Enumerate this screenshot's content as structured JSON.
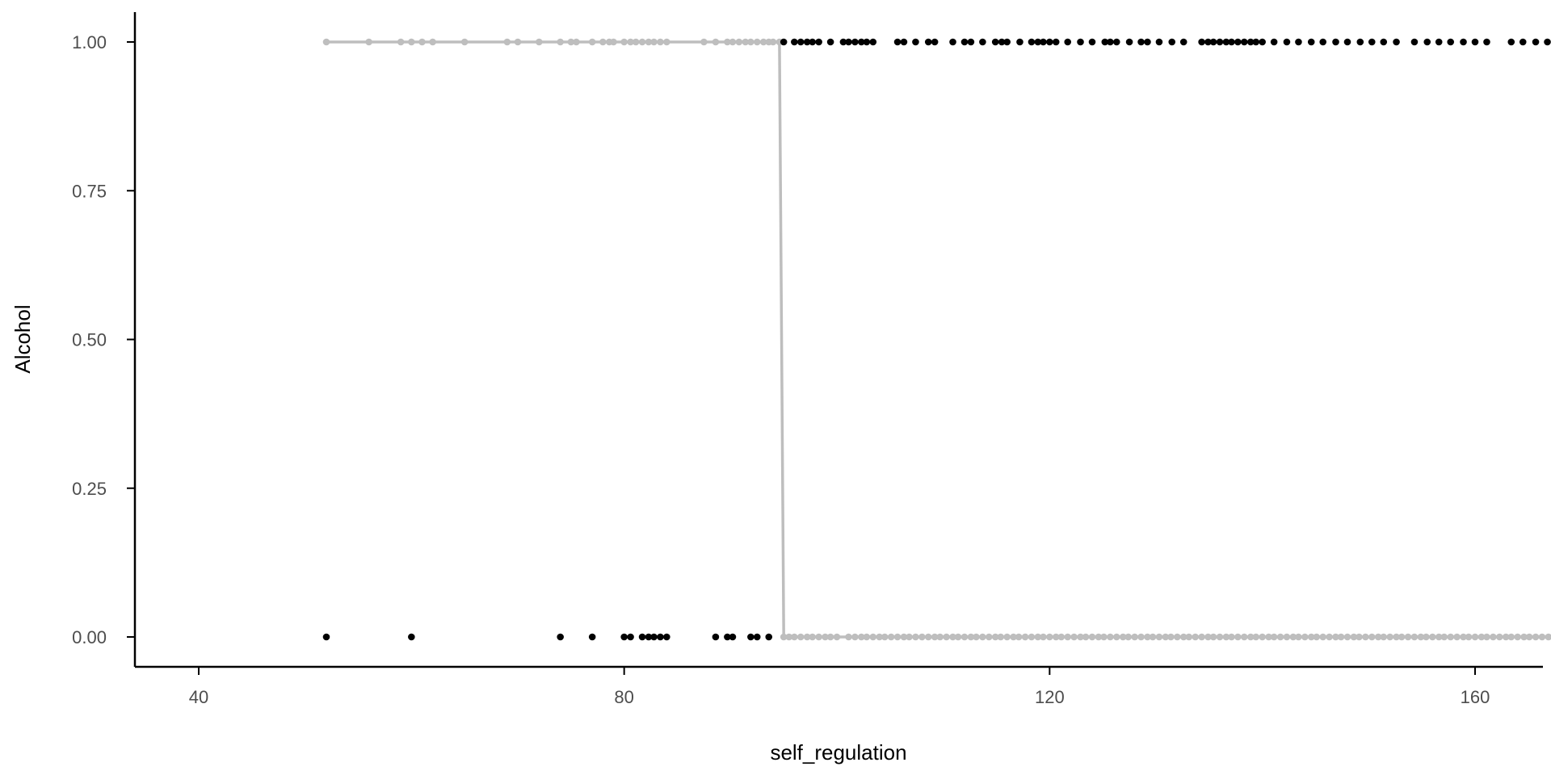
{
  "chart_data": {
    "type": "scatter",
    "xlabel": "self_regulation",
    "ylabel": "Alcohol",
    "xlim": [
      34,
      166
    ],
    "ylim": [
      -0.05,
      1.05
    ],
    "x_ticks": [
      40,
      80,
      120,
      160
    ],
    "x_tick_labels": [
      "40",
      "80",
      "120",
      "160"
    ],
    "y_ticks": [
      0,
      0.25,
      0.5,
      0.75,
      1
    ],
    "y_tick_labels": [
      "0.00",
      "0.25",
      "0.50",
      "0.75",
      "1.00"
    ],
    "grid": false,
    "legend": "none",
    "colors": {
      "observed": "#000000",
      "fitted": "#bebebe",
      "axis": "#000000",
      "tick_text": "#4d4d4d"
    },
    "series": [
      {
        "kind": "points",
        "points": [
          [
            52,
            0
          ],
          [
            60,
            0
          ],
          [
            74,
            0
          ],
          [
            77,
            0
          ],
          [
            80,
            0
          ],
          [
            80.6,
            0
          ],
          [
            81.7,
            0
          ],
          [
            82.3,
            0
          ],
          [
            82.8,
            0
          ],
          [
            83.4,
            0
          ],
          [
            84,
            0
          ],
          [
            88.6,
            0
          ],
          [
            89.7,
            0
          ],
          [
            90.2,
            0
          ],
          [
            91.9,
            0
          ],
          [
            92.5,
            0
          ],
          [
            93.6,
            0
          ],
          [
            95,
            1
          ],
          [
            96,
            1
          ],
          [
            96.6,
            1
          ],
          [
            97.2,
            1
          ],
          [
            97.7,
            1
          ],
          [
            98.3,
            1
          ],
          [
            99.4,
            1
          ],
          [
            100.6,
            1
          ],
          [
            101.1,
            1
          ],
          [
            101.7,
            1
          ],
          [
            102.3,
            1
          ],
          [
            102.8,
            1
          ],
          [
            103.4,
            1
          ],
          [
            105.7,
            1
          ],
          [
            106.3,
            1
          ],
          [
            107.4,
            1
          ],
          [
            108.6,
            1
          ],
          [
            109.2,
            1
          ],
          [
            110.9,
            1
          ],
          [
            112,
            1
          ],
          [
            112.6,
            1
          ],
          [
            113.7,
            1
          ],
          [
            114.9,
            1
          ],
          [
            115.5,
            1
          ],
          [
            116,
            1
          ],
          [
            117.2,
            1
          ],
          [
            118.3,
            1
          ],
          [
            118.9,
            1
          ],
          [
            119.4,
            1
          ],
          [
            120,
            1
          ],
          [
            120.6,
            1
          ],
          [
            121.7,
            1
          ],
          [
            122.9,
            1
          ],
          [
            124,
            1
          ],
          [
            125.2,
            1
          ],
          [
            125.7,
            1
          ],
          [
            126.3,
            1
          ],
          [
            127.5,
            1
          ],
          [
            128.6,
            1
          ],
          [
            129.2,
            1
          ],
          [
            130.3,
            1
          ],
          [
            131.5,
            1
          ],
          [
            132.6,
            1
          ],
          [
            134.3,
            1
          ],
          [
            134.9,
            1
          ],
          [
            135.4,
            1
          ],
          [
            136,
            1
          ],
          [
            136.6,
            1
          ],
          [
            137.1,
            1
          ],
          [
            137.7,
            1
          ],
          [
            138.3,
            1
          ],
          [
            138.9,
            1
          ],
          [
            139.4,
            1
          ],
          [
            140,
            1
          ],
          [
            141.1,
            1
          ],
          [
            142.3,
            1
          ],
          [
            143.4,
            1
          ],
          [
            144.6,
            1
          ],
          [
            145.7,
            1
          ],
          [
            146.9,
            1
          ],
          [
            148,
            1
          ],
          [
            149.2,
            1
          ],
          [
            150.3,
            1
          ],
          [
            151.4,
            1
          ],
          [
            152.6,
            1
          ],
          [
            154.3,
            1
          ],
          [
            155.5,
            1
          ],
          [
            156.6,
            1
          ],
          [
            157.7,
            1
          ],
          [
            158.9,
            1
          ],
          [
            160,
            1
          ],
          [
            161.1,
            1
          ],
          [
            163.4,
            1
          ],
          [
            164.5,
            1
          ],
          [
            165.7,
            1
          ],
          [
            166.8,
            1
          ],
          [
            168,
            1
          ]
        ]
      },
      {
        "kind": "fitted",
        "upper_x": [
          52,
          56,
          59,
          60,
          61,
          62,
          65,
          69,
          70,
          72,
          74,
          75,
          75.5,
          77,
          78,
          78.6,
          79,
          80,
          80.6,
          81.1,
          81.7,
          82.3,
          82.8,
          83.4,
          84,
          87.5,
          88.6,
          89.7,
          90.2,
          90.8,
          91.4,
          91.9,
          92.5,
          93.1,
          93.6,
          94,
          94.6
        ],
        "lower_x": [
          95,
          95.5,
          96,
          96.6,
          97.2,
          97.7,
          98.3,
          98.9,
          99.4,
          100,
          101.1,
          101.7,
          102.3,
          102.8,
          103.4,
          104,
          104.5,
          105.1,
          105.7,
          106.3,
          106.8,
          107.4,
          108,
          108.6,
          109.2,
          109.7,
          110.3,
          110.9,
          111.4,
          112,
          112.6,
          113.1,
          113.7,
          114.3,
          114.9,
          115.4,
          116,
          116.6,
          117.1,
          117.7,
          118.3,
          118.9,
          119.4,
          120,
          120.6,
          121.1,
          121.7,
          122.3,
          122.9,
          123.4,
          124,
          124.6,
          125.1,
          125.7,
          126.3,
          126.9,
          127.4,
          128,
          128.6,
          129.2,
          129.7,
          130.3,
          130.9,
          131.4,
          132,
          132.6,
          133.1,
          133.7,
          134.3,
          134.9,
          135.4,
          136,
          136.6,
          137.1,
          137.7,
          138.3,
          138.9,
          139.4,
          140,
          140.6,
          141.1,
          141.7,
          142.3,
          142.9,
          143.4,
          144,
          144.6,
          145.1,
          145.7,
          146.3,
          146.9,
          147.4,
          148,
          148.6,
          149.1,
          149.7,
          150.3,
          150.9,
          151.4,
          152,
          152.6,
          153.1,
          153.7,
          154.3,
          154.9,
          155.4,
          156,
          156.6,
          157.1,
          157.7,
          158.3,
          158.9,
          159.4,
          160,
          160.6,
          161.1,
          161.7,
          162.3,
          162.9,
          163.4,
          164,
          164.6,
          165.1,
          165.7,
          166.3,
          166.9,
          167.4,
          168
        ]
      }
    ]
  }
}
